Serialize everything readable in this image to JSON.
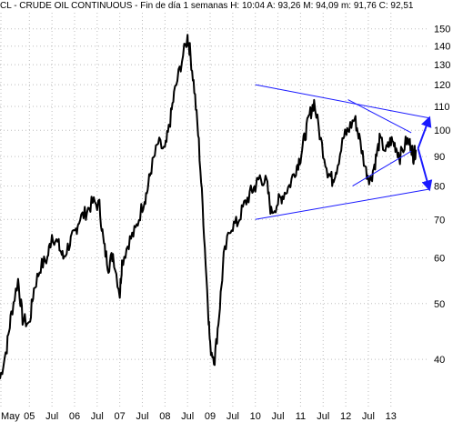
{
  "header": {
    "text": "CL - CRUDE OIL CONTINUOUS - Fin de día 1 semanas H: 10:04  A: 93,26  M: 94,09  m: 91,76  C: 92,51"
  },
  "colors": {
    "price": "#000000",
    "trendline": "#1a1aff",
    "arrow": "#1a1aff",
    "grid": "#bdbdbd",
    "background": "#ffffff"
  },
  "chart_data": {
    "type": "line",
    "title": "CL - CRUDE OIL CONTINUOUS - Fin de día 1 semanas H: 10:04  A: 93,26  M: 94,09  m: 91,76  C: 92,51",
    "xlabel": "",
    "ylabel": "",
    "y_scale": "log",
    "ylim": [
      33,
      160
    ],
    "xlim": [
      2004.35,
      2013.85
    ],
    "grid": true,
    "y_ticks": [
      40,
      50,
      60,
      70,
      80,
      90,
      100,
      110,
      120,
      130,
      140,
      150
    ],
    "x_ticks": [
      {
        "label": "May",
        "x": 2004.37
      },
      {
        "label": "05",
        "x": 2005.0
      },
      {
        "label": "Jul",
        "x": 2005.5
      },
      {
        "label": "06",
        "x": 2006.0
      },
      {
        "label": "Jul",
        "x": 2006.5
      },
      {
        "label": "07",
        "x": 2007.0
      },
      {
        "label": "Jul",
        "x": 2007.5
      },
      {
        "label": "08",
        "x": 2008.0
      },
      {
        "label": "Jul",
        "x": 2008.5
      },
      {
        "label": "09",
        "x": 2009.0
      },
      {
        "label": "Jul",
        "x": 2009.5
      },
      {
        "label": "10",
        "x": 2010.0
      },
      {
        "label": "Jul",
        "x": 2010.5
      },
      {
        "label": "11",
        "x": 2011.0
      },
      {
        "label": "Jul",
        "x": 2011.5
      },
      {
        "label": "12",
        "x": 2012.0
      },
      {
        "label": "Jul",
        "x": 2012.5
      },
      {
        "label": "13",
        "x": 2013.0
      }
    ],
    "series": [
      {
        "values_x": [
          2004.35,
          2004.5,
          2004.6,
          2004.75,
          2004.85,
          2005.0,
          2005.1,
          2005.25,
          2005.4,
          2005.5,
          2005.65,
          2005.75,
          2005.9,
          2006.0,
          2006.1,
          2006.25,
          2006.4,
          2006.55,
          2006.65,
          2006.75,
          2006.85,
          2007.0,
          2007.05,
          2007.2,
          2007.35,
          2007.5,
          2007.6,
          2007.7,
          2007.85,
          2008.0,
          2008.1,
          2008.2,
          2008.35,
          2008.5,
          2008.55,
          2008.65,
          2008.75,
          2008.85,
          2008.95,
          2009.0,
          2009.1,
          2009.2,
          2009.3,
          2009.45,
          2009.6,
          2009.75,
          2009.9,
          2010.0,
          2010.1,
          2010.25,
          2010.35,
          2010.5,
          2010.6,
          2010.75,
          2010.9,
          2011.0,
          2011.1,
          2011.2,
          2011.3,
          2011.45,
          2011.6,
          2011.7,
          2011.8,
          2011.95,
          2012.05,
          2012.2,
          2012.3,
          2012.45,
          2012.55,
          2012.65,
          2012.75,
          2012.9,
          2013.0,
          2013.1,
          2013.2,
          2013.35,
          2013.45,
          2013.5,
          2013.55
        ],
        "values": [
          37,
          42,
          48,
          55,
          47,
          46,
          53,
          58,
          60,
          66,
          63,
          60,
          64,
          66,
          70,
          72,
          75,
          74,
          63,
          58,
          61,
          52,
          59,
          64,
          67,
          74,
          78,
          86,
          95,
          92,
          102,
          115,
          130,
          145,
          138,
          118,
          95,
          70,
          50,
          42,
          40,
          48,
          60,
          68,
          69,
          74,
          78,
          80,
          83,
          81,
          72,
          75,
          77,
          80,
          86,
          90,
          98,
          106,
          112,
          96,
          85,
          82,
          86,
          97,
          100,
          105,
          97,
          85,
          82,
          88,
          96,
          92,
          96,
          94,
          90,
          96,
          94,
          90,
          92.51
        ]
      }
    ],
    "annotations": [
      {
        "type": "line",
        "points": [
          [
            2010.0,
            120
          ],
          [
            2013.85,
            105
          ]
        ]
      },
      {
        "type": "line",
        "points": [
          [
            2010.0,
            70
          ],
          [
            2013.85,
            79
          ]
        ]
      },
      {
        "type": "line",
        "points": [
          [
            2012.05,
            113
          ],
          [
            2013.45,
            99
          ]
        ]
      },
      {
        "type": "line",
        "points": [
          [
            2012.15,
            80
          ],
          [
            2013.45,
            92
          ]
        ]
      },
      {
        "type": "arrow",
        "from": [
          2013.6,
          93
        ],
        "to": [
          2013.85,
          105
        ]
      },
      {
        "type": "arrow",
        "from": [
          2013.6,
          93
        ],
        "to": [
          2013.85,
          79
        ]
      }
    ]
  }
}
